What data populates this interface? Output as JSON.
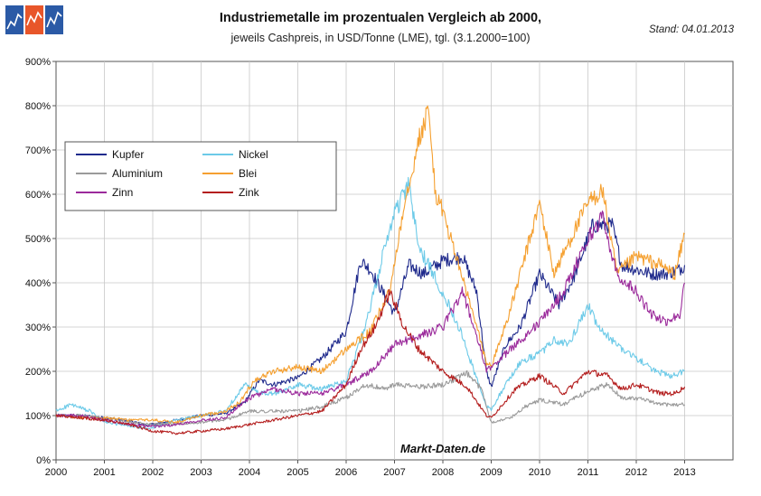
{
  "header": {
    "title": "Industriemetalle im prozentualen Vergleich ab 2000,",
    "subtitle": "jeweils Cashpreis, in USD/Tonne (LME), tgl. (3.1.2000=100)",
    "stand": "Stand: 04.01.2013"
  },
  "logo": {
    "colors": [
      "#2b5aa6",
      "#e8562a",
      "#2b5aa6"
    ]
  },
  "chart_data": {
    "type": "line",
    "title": "Industriemetalle im prozentualen Vergleich ab 2000,",
    "subtitle": "jeweils Cashpreis, in USD/Tonne (LME), tgl. (3.1.2000=100)",
    "xlabel": "",
    "ylabel": "",
    "xlim": [
      2000,
      2014
    ],
    "ylim": [
      0,
      900
    ],
    "x_ticks": [
      "2000",
      "2001",
      "2002",
      "2003",
      "2004",
      "2005",
      "2006",
      "2007",
      "2008",
      "2009",
      "2010",
      "2011",
      "2012",
      "2013"
    ],
    "y_ticks": [
      "0%",
      "100%",
      "200%",
      "300%",
      "400%",
      "500%",
      "600%",
      "700%",
      "800%",
      "900%"
    ],
    "grid": true,
    "legend_position": "upper-left",
    "watermark": "Markt-Daten.de",
    "series": [
      {
        "name": "Kupfer",
        "color": "#1f2a8c",
        "x": [
          2000.0,
          2000.5,
          2001.0,
          2001.5,
          2001.9,
          2002.5,
          2003.0,
          2003.5,
          2003.9,
          2004.2,
          2004.5,
          2005.0,
          2005.5,
          2006.0,
          2006.3,
          2006.5,
          2007.0,
          2007.3,
          2007.6,
          2008.0,
          2008.4,
          2008.7,
          2008.9,
          2009.0,
          2009.3,
          2009.6,
          2010.0,
          2010.4,
          2010.7,
          2011.1,
          2011.5,
          2011.7,
          2012.0,
          2012.3,
          2012.6,
          2012.9,
          2013.0
        ],
        "values": [
          100,
          100,
          95,
          88,
          78,
          90,
          100,
          105,
          130,
          180,
          170,
          185,
          230,
          290,
          450,
          430,
          330,
          440,
          420,
          450,
          460,
          380,
          200,
          165,
          260,
          300,
          420,
          350,
          410,
          530,
          530,
          440,
          430,
          420,
          420,
          430,
          440
        ]
      },
      {
        "name": "Nickel",
        "color": "#6ccae8",
        "x": [
          2000.0,
          2000.3,
          2000.7,
          2001.0,
          2001.6,
          2001.9,
          2002.5,
          2003.0,
          2003.5,
          2003.9,
          2004.2,
          2004.6,
          2005.0,
          2005.5,
          2006.0,
          2006.4,
          2006.8,
          2007.0,
          2007.3,
          2007.5,
          2007.9,
          2008.3,
          2008.9,
          2009.0,
          2009.3,
          2009.6,
          2010.0,
          2010.3,
          2010.6,
          2011.0,
          2011.2,
          2011.6,
          2012.0,
          2012.4,
          2012.7,
          2013.0
        ],
        "values": [
          110,
          125,
          110,
          85,
          75,
          70,
          90,
          100,
          110,
          170,
          150,
          150,
          170,
          160,
          180,
          300,
          480,
          560,
          620,
          480,
          400,
          310,
          120,
          115,
          170,
          220,
          240,
          270,
          260,
          350,
          300,
          260,
          230,
          200,
          190,
          200
        ]
      },
      {
        "name": "Aluminium",
        "color": "#9a9a9a",
        "x": [
          2000.0,
          2000.5,
          2001.0,
          2001.5,
          2002.0,
          2002.5,
          2003.0,
          2003.5,
          2004.0,
          2004.5,
          2005.0,
          2005.5,
          2006.0,
          2006.4,
          2006.8,
          2007.0,
          2007.5,
          2008.0,
          2008.5,
          2008.8,
          2009.0,
          2009.4,
          2009.7,
          2010.0,
          2010.5,
          2011.0,
          2011.4,
          2011.7,
          2012.0,
          2012.5,
          2012.9,
          2013.0
        ],
        "values": [
          100,
          100,
          95,
          85,
          80,
          82,
          85,
          90,
          110,
          110,
          110,
          120,
          140,
          170,
          160,
          170,
          165,
          170,
          195,
          160,
          85,
          95,
          120,
          135,
          125,
          155,
          170,
          140,
          140,
          125,
          125,
          125
        ]
      },
      {
        "name": "Blei",
        "color": "#f5a030",
        "x": [
          2000.0,
          2000.5,
          2001.0,
          2001.5,
          2002.0,
          2002.5,
          2003.0,
          2003.5,
          2003.8,
          2004.1,
          2004.5,
          2005.0,
          2005.5,
          2006.0,
          2006.5,
          2006.9,
          2007.2,
          2007.5,
          2007.7,
          2007.85,
          2008.0,
          2008.3,
          2008.7,
          2008.9,
          2009.0,
          2009.4,
          2009.7,
          2010.0,
          2010.3,
          2010.6,
          2011.0,
          2011.3,
          2011.6,
          2012.0,
          2012.5,
          2012.8,
          2013.0
        ],
        "values": [
          100,
          95,
          95,
          90,
          90,
          85,
          100,
          110,
          130,
          180,
          200,
          210,
          200,
          250,
          290,
          380,
          580,
          720,
          790,
          600,
          560,
          450,
          300,
          220,
          210,
          340,
          460,
          580,
          420,
          490,
          580,
          610,
          420,
          460,
          440,
          420,
          510
        ]
      },
      {
        "name": "Zinn",
        "color": "#9b2a9b",
        "x": [
          2000.0,
          2000.5,
          2001.0,
          2001.5,
          2002.0,
          2002.5,
          2003.0,
          2003.5,
          2004.0,
          2004.5,
          2005.0,
          2005.5,
          2006.0,
          2006.5,
          2007.0,
          2007.5,
          2008.0,
          2008.4,
          2008.7,
          2008.9,
          2009.0,
          2009.4,
          2009.7,
          2010.0,
          2010.5,
          2011.0,
          2011.3,
          2011.6,
          2012.0,
          2012.3,
          2012.6,
          2012.9,
          2013.0
        ],
        "values": [
          100,
          100,
          90,
          80,
          75,
          80,
          90,
          95,
          140,
          160,
          150,
          150,
          170,
          200,
          260,
          280,
          300,
          380,
          280,
          200,
          210,
          250,
          280,
          310,
          380,
          500,
          550,
          420,
          380,
          330,
          310,
          330,
          400
        ]
      },
      {
        "name": "Zink",
        "color": "#b41e1e",
        "x": [
          2000.0,
          2000.5,
          2001.0,
          2001.5,
          2002.0,
          2002.5,
          2003.0,
          2003.5,
          2004.0,
          2004.5,
          2005.0,
          2005.5,
          2006.0,
          2006.3,
          2006.6,
          2006.9,
          2007.2,
          2007.5,
          2008.0,
          2008.5,
          2008.9,
          2009.0,
          2009.5,
          2010.0,
          2010.5,
          2011.0,
          2011.4,
          2011.7,
          2012.0,
          2012.5,
          2012.8,
          2013.0
        ],
        "values": [
          100,
          95,
          90,
          80,
          65,
          60,
          65,
          70,
          80,
          90,
          100,
          110,
          170,
          250,
          300,
          380,
          300,
          250,
          200,
          165,
          100,
          95,
          160,
          190,
          150,
          200,
          190,
          160,
          170,
          150,
          150,
          165
        ]
      }
    ]
  }
}
